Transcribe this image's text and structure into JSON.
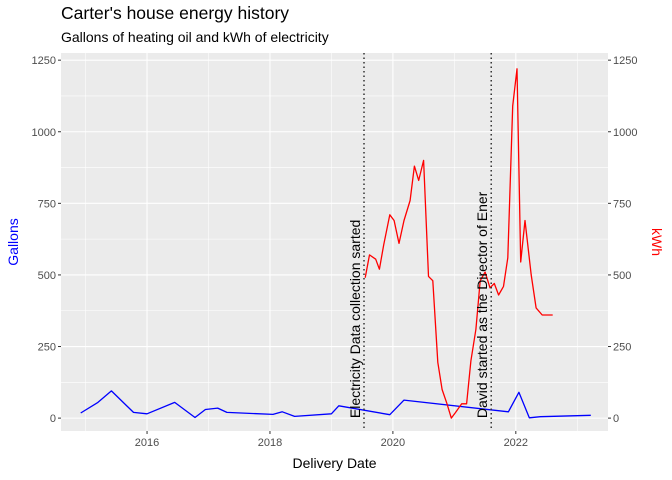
{
  "chart_data": {
    "type": "line",
    "title": "Carter's house energy history",
    "subtitle": "Gallons of heating oil and kWh of electricity",
    "xlabel": "Delivery Date",
    "ylabel_left": "Gallons",
    "ylabel_right": "kWh",
    "x_ticks": [
      "2016",
      "2018",
      "2020",
      "2022"
    ],
    "y_ticks": [
      "0",
      "250",
      "500",
      "750",
      "1000",
      "1250"
    ],
    "y_ticks_right": [
      "0",
      "250",
      "500",
      "750",
      "1000",
      "1250"
    ],
    "xlim": [
      2014.6,
      2023.5
    ],
    "ylim": [
      -45,
      1275
    ],
    "grid": true,
    "colors": {
      "gallons": "#0000ff",
      "kwh": "#ff0000",
      "panel": "#ebebeb",
      "grid": "#ffffff"
    },
    "annotations": [
      {
        "x": 2019.53,
        "label": "Electricity Data collection sarted"
      },
      {
        "x": 2021.6,
        "label": "David started as the Director of Ener"
      }
    ],
    "series": [
      {
        "key": "gallons",
        "x": [
          2014.92,
          2015.2,
          2015.42,
          2015.78,
          2016.0,
          2016.45,
          2016.78,
          2016.95,
          2017.15,
          2017.3,
          2018.05,
          2018.2,
          2018.4,
          2019.0,
          2019.12,
          2019.95,
          2020.18,
          2021.88,
          2022.05,
          2022.22,
          2022.4,
          2023.22
        ],
        "y": [
          18,
          55,
          95,
          20,
          15,
          55,
          2,
          30,
          35,
          20,
          13,
          22,
          6,
          15,
          43,
          12,
          63,
          22,
          90,
          1,
          5,
          10
        ]
      },
      {
        "key": "kwh",
        "x": [
          2019.55,
          2019.62,
          2019.72,
          2019.78,
          2019.85,
          2019.95,
          2020.02,
          2020.1,
          2020.18,
          2020.28,
          2020.35,
          2020.42,
          2020.5,
          2020.58,
          2020.65,
          2020.73,
          2020.8,
          2020.88,
          2020.95,
          2021.02,
          2021.12,
          2021.2,
          2021.27,
          2021.35,
          2021.42,
          2021.5,
          2021.58,
          2021.65,
          2021.72,
          2021.8,
          2021.87,
          2021.95,
          2022.02,
          2022.08,
          2022.15,
          2022.25,
          2022.33,
          2022.43,
          2022.53,
          2022.6
        ],
        "y": [
          490,
          570,
          555,
          520,
          605,
          710,
          690,
          610,
          690,
          760,
          880,
          830,
          900,
          495,
          480,
          195,
          100,
          50,
          0,
          20,
          50,
          50,
          200,
          310,
          480,
          510,
          455,
          470,
          430,
          460,
          560,
          1090,
          1220,
          545,
          690,
          500,
          385,
          360,
          360,
          360
        ]
      }
    ]
  }
}
